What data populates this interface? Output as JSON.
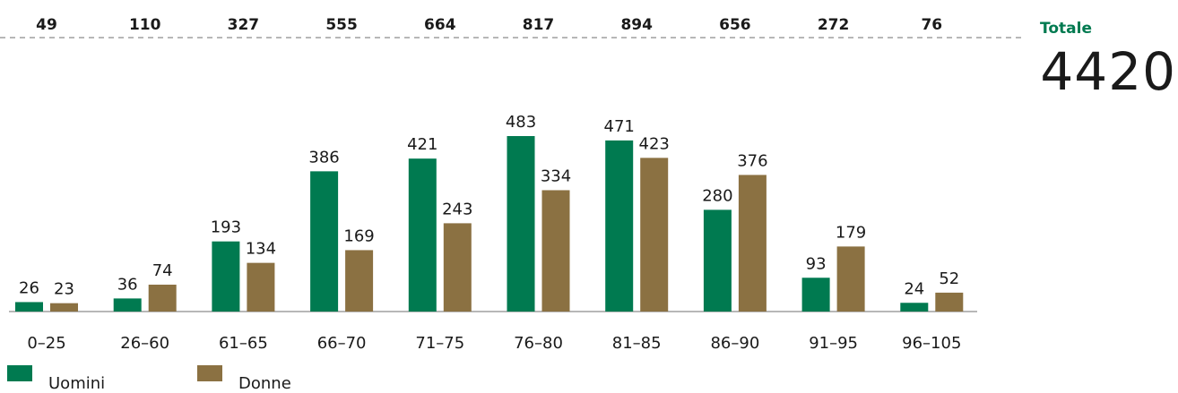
{
  "colors": {
    "men": "#007a50",
    "women": "#8b7142",
    "accent": "#007a50"
  },
  "grand_total": {
    "label": "Totale",
    "value": "4420"
  },
  "legend": [
    {
      "label": "Uomini",
      "color": "#007a50"
    },
    {
      "label": "Donne",
      "color": "#8b7142"
    }
  ],
  "chart_data": {
    "type": "bar",
    "categories": [
      "0–25",
      "26–60",
      "61–65",
      "66–70",
      "71–75",
      "76–80",
      "81–85",
      "86–90",
      "91–95",
      "96–105"
    ],
    "series": [
      {
        "name": "Uomini",
        "values": [
          26,
          36,
          193,
          386,
          421,
          483,
          471,
          280,
          93,
          24
        ]
      },
      {
        "name": "Donne",
        "values": [
          23,
          74,
          134,
          169,
          243,
          334,
          423,
          376,
          179,
          52
        ]
      }
    ],
    "totals": [
      49,
      110,
      327,
      555,
      664,
      817,
      894,
      656,
      272,
      76
    ],
    "ylim": [
      0,
      500
    ]
  }
}
